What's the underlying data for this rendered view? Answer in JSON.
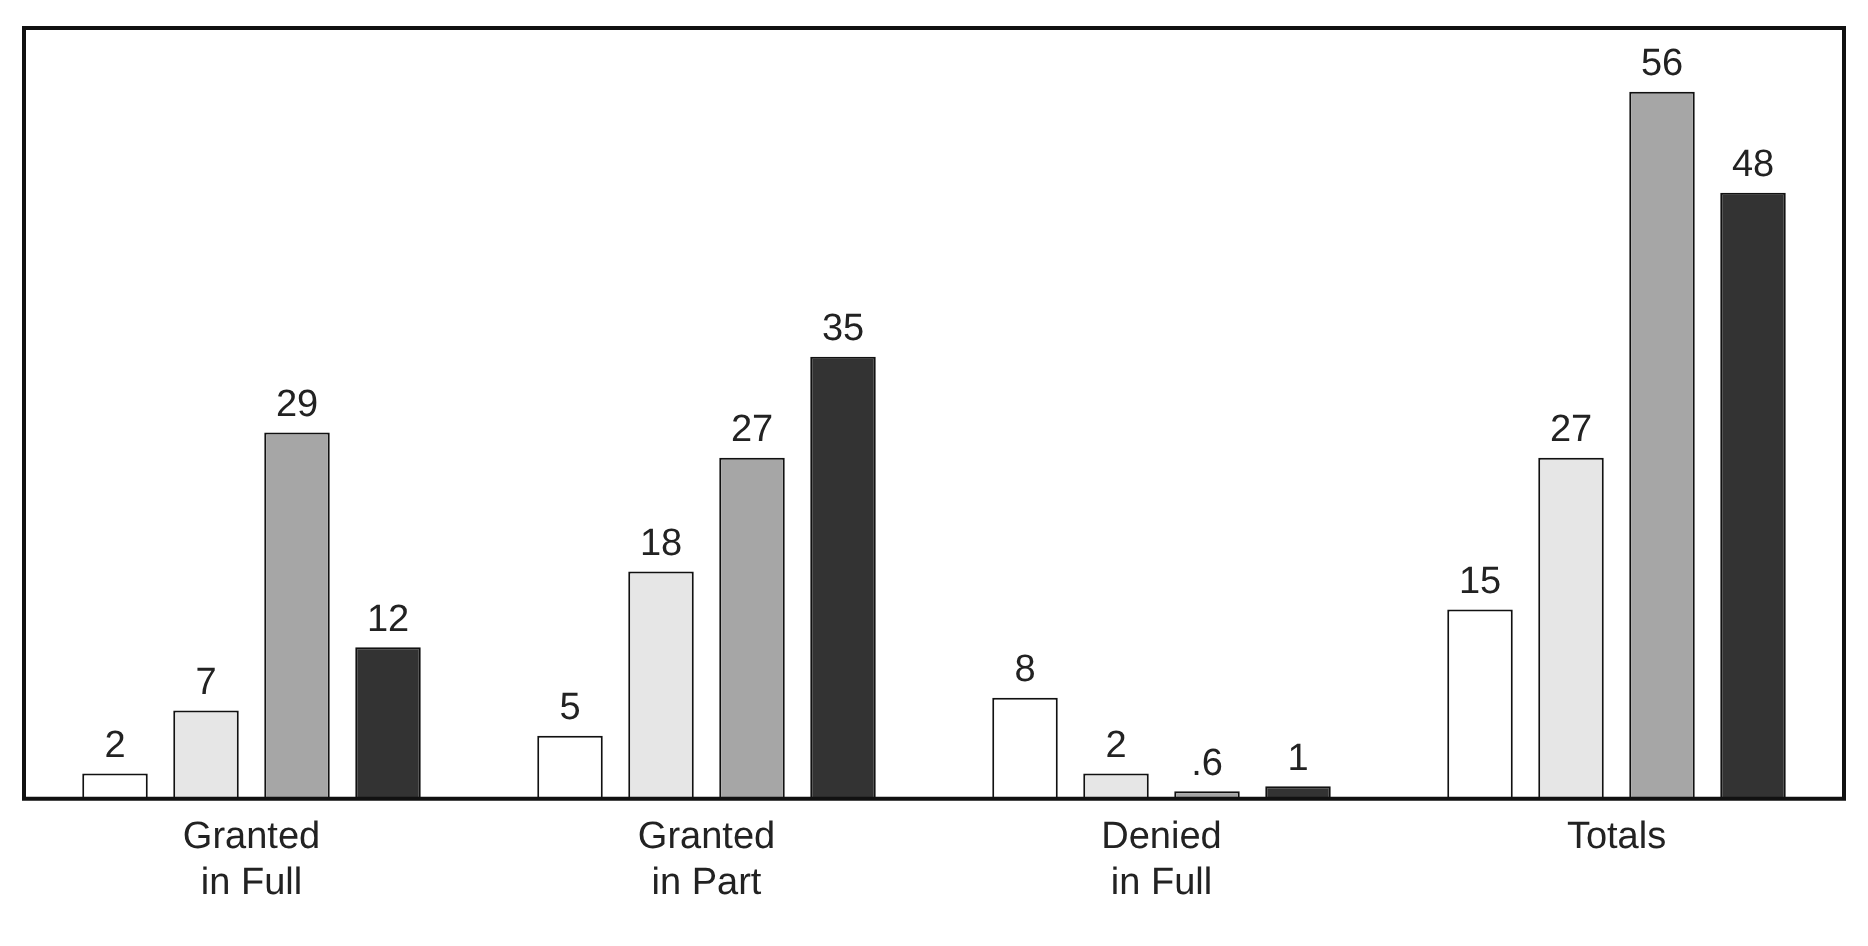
{
  "chart_data": {
    "type": "bar",
    "categories": [
      "Granted in Full",
      "Granted in Part",
      "Denied in Full",
      "Totals"
    ],
    "series": [
      {
        "color": "#ffffff",
        "values": [
          2,
          5,
          8,
          15
        ]
      },
      {
        "color": "#e6e6e6",
        "values": [
          7,
          18,
          2,
          27
        ]
      },
      {
        "color": "#a6a6a6",
        "values": [
          29,
          27,
          0.6,
          56
        ],
        "value_labels": [
          "29",
          "27",
          ".6",
          "56"
        ]
      },
      {
        "color": "#333333",
        "values": [
          12,
          35,
          1,
          48
        ]
      }
    ],
    "data_labels": true,
    "grid": false,
    "legend": false
  }
}
